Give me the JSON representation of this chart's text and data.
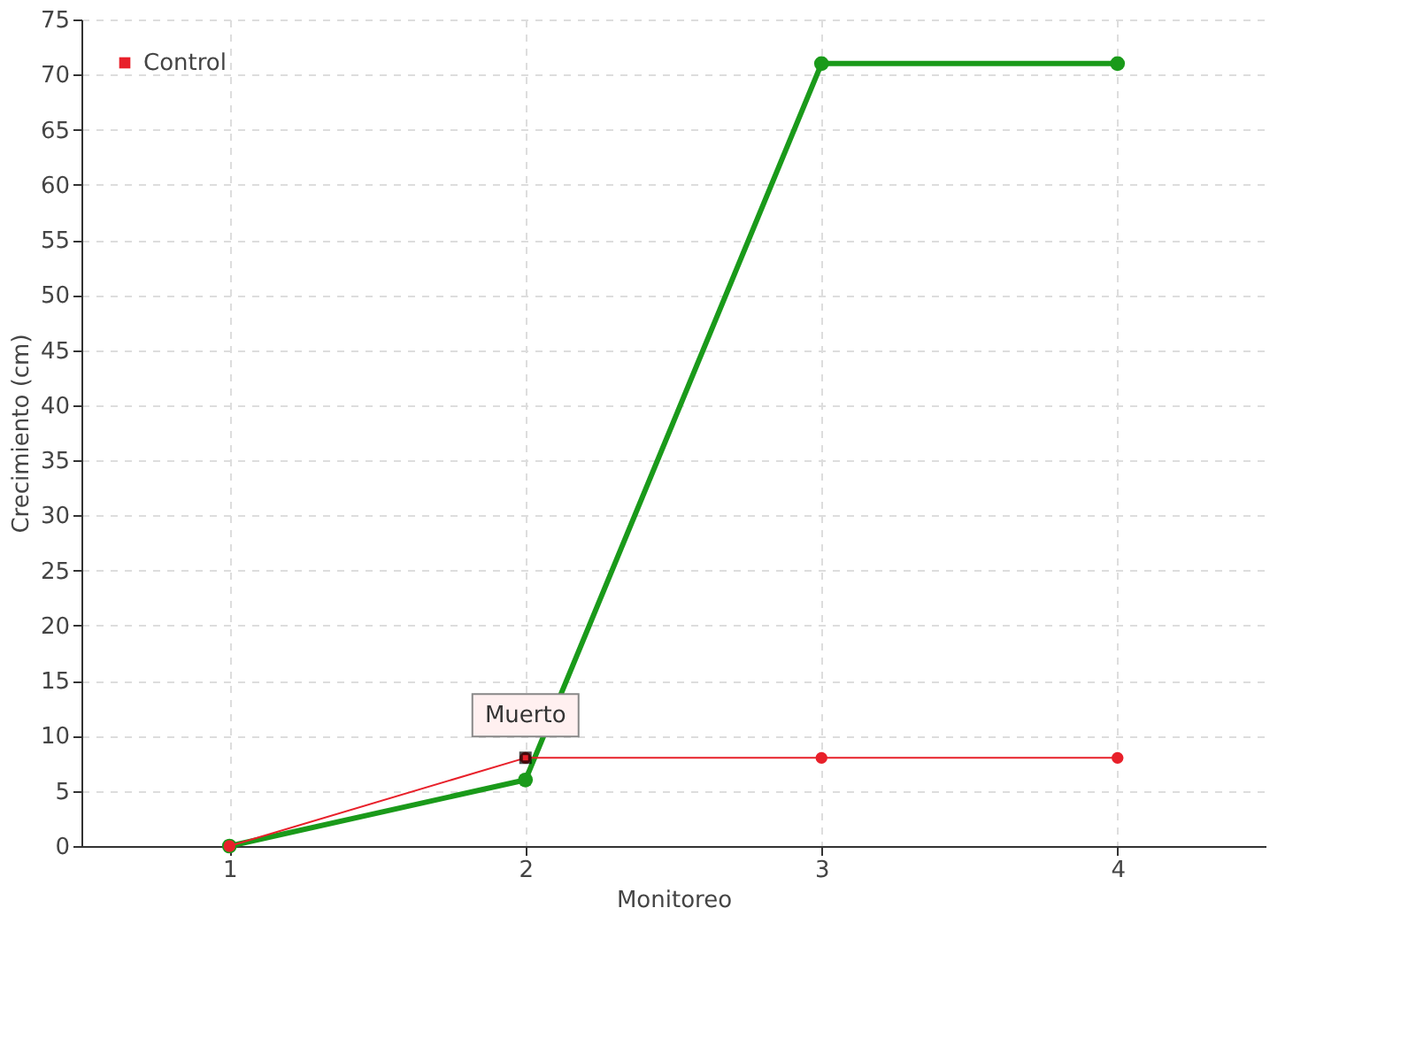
{
  "chart_data": {
    "type": "line",
    "xlabel": "Monitoreo",
    "ylabel": "Crecimiento (cm)",
    "categories": [
      "1",
      "2",
      "3",
      "4"
    ],
    "series": [
      {
        "color": "#1a9a1a",
        "values": [
          0,
          6,
          71,
          71
        ]
      },
      {
        "name": "Control",
        "color": "#e8202a",
        "values": [
          0,
          8,
          8,
          8
        ]
      }
    ],
    "annotations": [
      {
        "text": "Muerto",
        "x": "2",
        "y": 8
      }
    ],
    "ylim": [
      0,
      75
    ],
    "yticks": [
      0,
      5,
      10,
      15,
      20,
      25,
      30,
      35,
      40,
      45,
      50,
      55,
      60,
      65,
      70,
      75
    ],
    "grid": true,
    "legend": "top left",
    "marker": "circle",
    "line_style": "solid"
  }
}
